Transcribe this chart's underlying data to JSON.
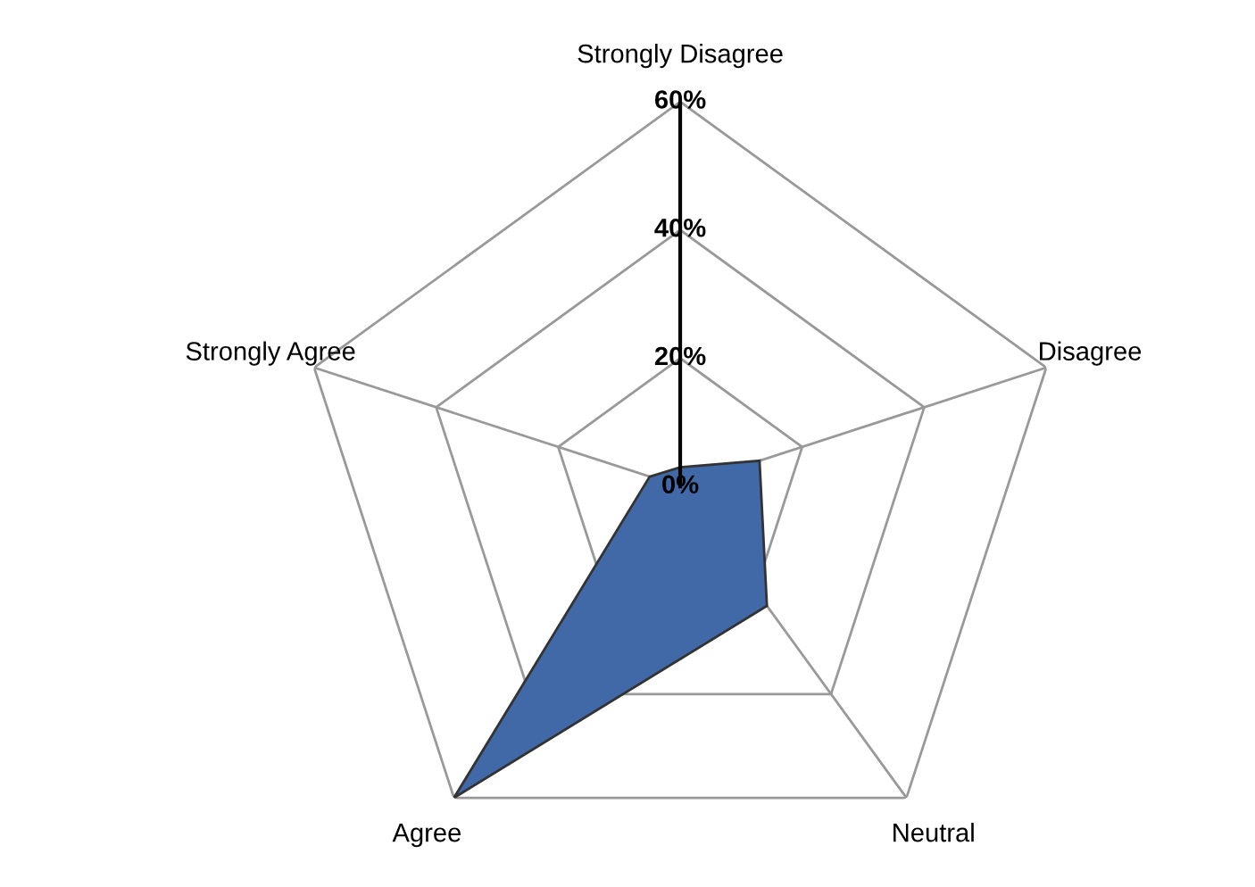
{
  "chart_data": {
    "type": "radar",
    "categories": [
      "Strongly Disagree",
      "Disagree",
      "Neutral",
      "Agree",
      "Strongly Agree"
    ],
    "series": [
      {
        "color": "#4169a8",
        "values": [
          3,
          13,
          23,
          60,
          5
        ]
      }
    ],
    "ylim": [
      0,
      60
    ],
    "yticks": [
      {
        "value": 0,
        "label": "0%"
      },
      {
        "value": 20,
        "label": "20%"
      },
      {
        "value": 40,
        "label": "40%"
      },
      {
        "value": 60,
        "label": "60%"
      }
    ],
    "grid": true,
    "legend": false
  }
}
